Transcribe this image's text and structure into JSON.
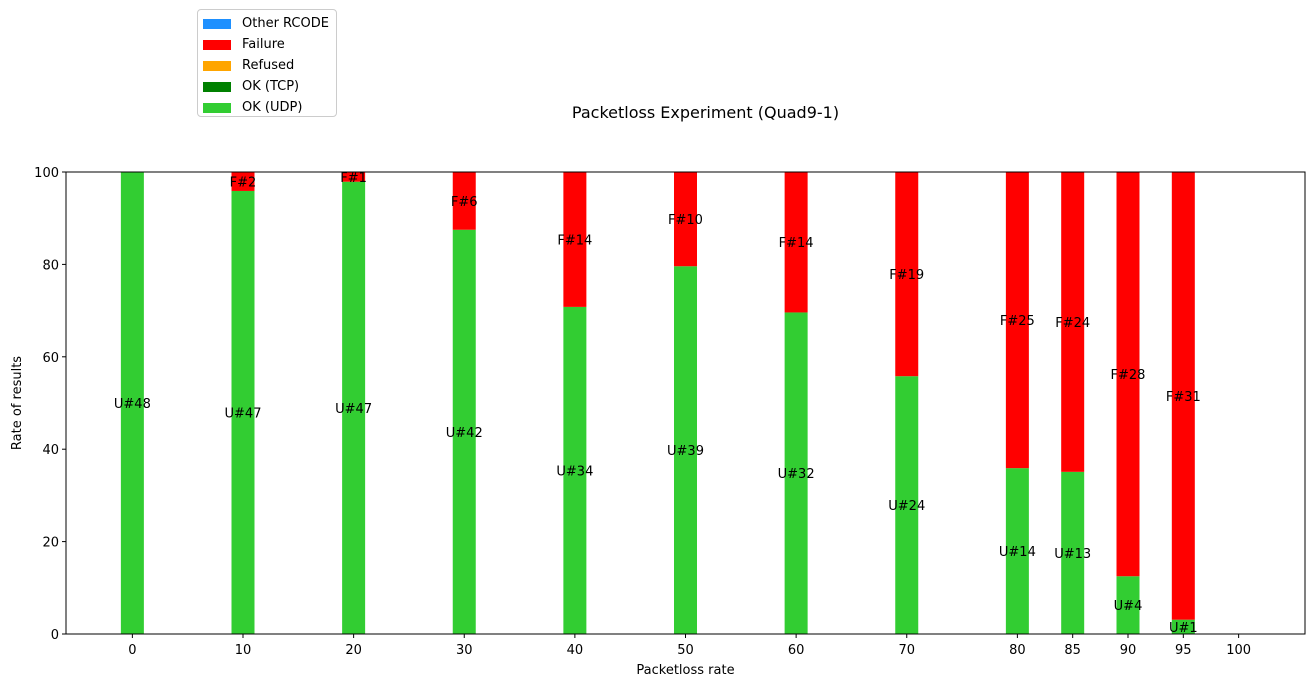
{
  "chart_data": {
    "type": "bar",
    "stacked": true,
    "title": "Packetloss Experiment (Quad9-1)",
    "xlabel": "Packetloss rate",
    "ylabel": "Rate of results",
    "ylim": [
      0,
      100
    ],
    "yticks": [
      0,
      20,
      40,
      60,
      80,
      100
    ],
    "xlim": [
      -6,
      106
    ],
    "xticks": [
      0,
      10,
      20,
      30,
      40,
      50,
      60,
      70,
      80,
      85,
      90,
      95,
      100
    ],
    "legend_position": "upper-left-outside",
    "grid": false,
    "x": [
      0,
      10,
      20,
      30,
      40,
      50,
      60,
      70,
      80,
      85,
      90,
      95
    ],
    "series": [
      {
        "name": "OK (UDP)",
        "color": "#32cd32",
        "values": [
          100,
          95.9,
          97.9,
          87.5,
          70.8,
          79.6,
          69.6,
          55.8,
          35.9,
          35.1,
          12.5,
          3.1
        ],
        "labels": [
          "U#48",
          "U#47",
          "U#47",
          "U#42",
          "U#34",
          "U#39",
          "U#32",
          "U#24",
          "U#14",
          "U#13",
          "U#4",
          "U#1"
        ]
      },
      {
        "name": "OK (TCP)",
        "color": "#008000",
        "values": [
          0,
          0,
          0,
          0,
          0,
          0,
          0,
          0,
          0,
          0,
          0,
          0
        ],
        "labels": []
      },
      {
        "name": "Refused",
        "color": "#ffa500",
        "values": [
          0,
          0,
          0,
          0,
          0,
          0,
          0,
          0,
          0,
          0,
          0,
          0
        ],
        "labels": []
      },
      {
        "name": "Failure",
        "color": "#ff0000",
        "values": [
          0,
          4.1,
          2.1,
          12.5,
          29.2,
          20.4,
          30.4,
          44.2,
          64.1,
          64.9,
          87.5,
          96.9
        ],
        "labels": [
          "",
          "F#2",
          "F#1",
          "F#6",
          "F#14",
          "F#10",
          "F#14",
          "F#19",
          "F#25",
          "F#24",
          "F#28",
          "F#31"
        ]
      },
      {
        "name": "Other RCODE",
        "color": "#1e90ff",
        "values": [
          0,
          0,
          0,
          0,
          0,
          0,
          0,
          0,
          0,
          0,
          0,
          0
        ],
        "labels": []
      }
    ],
    "legend_order": [
      "Other RCODE",
      "Failure",
      "Refused",
      "OK (TCP)",
      "OK (UDP)"
    ]
  }
}
